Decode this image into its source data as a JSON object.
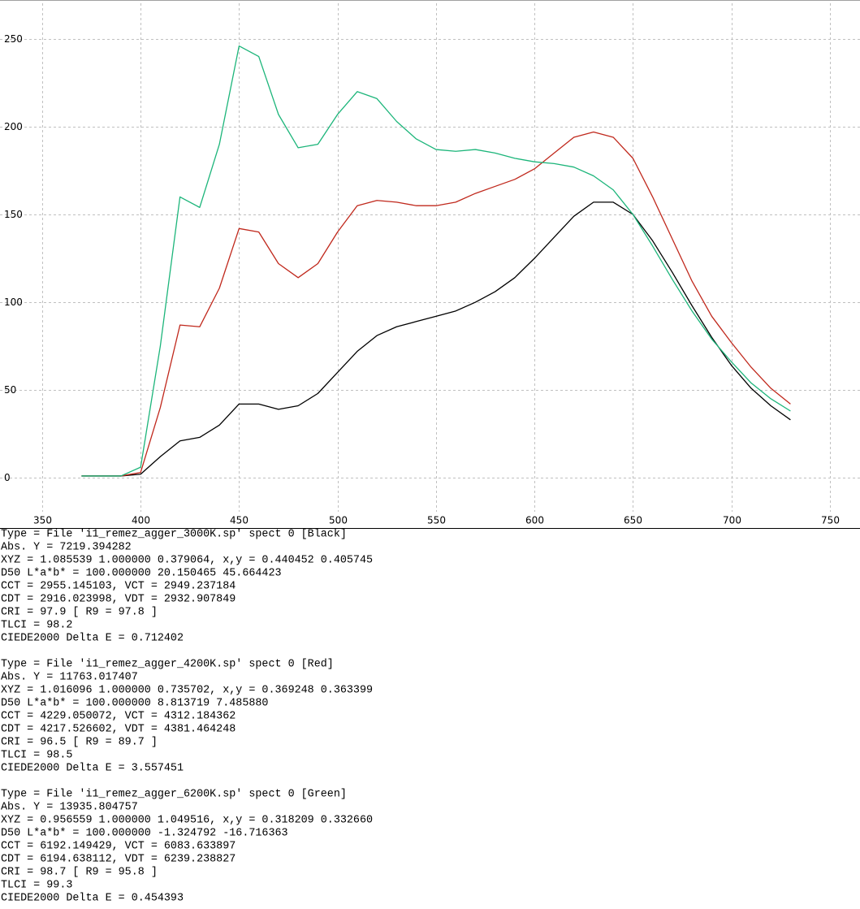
{
  "chart_data": {
    "type": "line",
    "x": [
      370,
      380,
      390,
      400,
      410,
      420,
      430,
      440,
      450,
      460,
      470,
      480,
      490,
      500,
      510,
      520,
      530,
      540,
      550,
      560,
      570,
      580,
      590,
      600,
      610,
      620,
      630,
      640,
      650,
      660,
      670,
      680,
      690,
      700,
      710,
      720,
      730
    ],
    "series": [
      {
        "color": "#000000",
        "values": [
          1,
          1,
          1,
          2,
          12,
          21,
          23,
          30,
          42,
          42,
          39,
          41,
          48,
          60,
          72,
          81,
          86,
          89,
          92,
          95,
          100,
          106,
          114,
          125,
          137,
          149,
          157,
          157,
          150,
          135,
          117,
          98,
          80,
          64,
          51,
          41,
          33
        ]
      },
      {
        "color": "#c0281c",
        "values": [
          1,
          1,
          1,
          3,
          40,
          87,
          86,
          108,
          142,
          140,
          122,
          114,
          122,
          140,
          155,
          158,
          157,
          155,
          155,
          157,
          162,
          166,
          170,
          176,
          185,
          194,
          197,
          194,
          182,
          160,
          136,
          112,
          92,
          77,
          63,
          51,
          42
        ]
      },
      {
        "color": "#1cb57a",
        "values": [
          1,
          1,
          1,
          6,
          75,
          160,
          154,
          190,
          246,
          240,
          207,
          188,
          190,
          207,
          220,
          216,
          203,
          193,
          187,
          186,
          187,
          185,
          182,
          180,
          179,
          177,
          172,
          164,
          150,
          132,
          113,
          95,
          79,
          66,
          54,
          45,
          38
        ]
      }
    ],
    "xlim": [
      328.6,
      765.3
    ],
    "ylim": [
      -19.4,
      272.2
    ],
    "xticks": [
      350,
      400,
      450,
      500,
      550,
      600,
      650,
      700,
      750
    ],
    "yticks": [
      0,
      50,
      100,
      150,
      200,
      250
    ],
    "grid": true
  },
  "report": {
    "blocks": [
      {
        "lines": [
          "Type = File 'i1_remez_agger_3000K.sp' spect 0 [Black]",
          "Abs. Y = 7219.394282",
          "XYZ = 1.085539 1.000000 0.379064, x,y = 0.440452 0.405745",
          "D50 L*a*b* = 100.000000 20.150465 45.664423",
          "CCT = 2955.145103, VCT = 2949.237184",
          "CDT = 2916.023998, VDT = 2932.907849",
          "CRI = 97.9 [ R9 = 97.8 ]",
          "TLCI = 98.2",
          "CIEDE2000 Delta E = 0.712402"
        ]
      },
      {
        "lines": [
          "Type = File 'i1_remez_agger_4200K.sp' spect 0 [Red]",
          "Abs. Y = 11763.017407",
          "XYZ = 1.016096 1.000000 0.735702, x,y = 0.369248 0.363399",
          "D50 L*a*b* = 100.000000 8.813719 7.485880",
          "CCT = 4229.050072, VCT = 4312.184362",
          "CDT = 4217.526602, VDT = 4381.464248",
          "CRI = 96.5 [ R9 = 89.7 ]",
          "TLCI = 98.5",
          "CIEDE2000 Delta E = 3.557451"
        ]
      },
      {
        "lines": [
          "Type = File 'i1_remez_agger_6200K.sp' spect 0 [Green]",
          "Abs. Y = 13935.804757",
          "XYZ = 0.956559 1.000000 1.049516, x,y = 0.318209 0.332660",
          "D50 L*a*b* = 100.000000 -1.324792 -16.716363",
          "CCT = 6192.149429, VCT = 6083.633897",
          "CDT = 6194.638112, VDT = 6239.238827",
          "CRI = 98.7 [ R9 = 95.8 ]",
          "TLCI = 99.3",
          "CIEDE2000 Delta E = 0.454393"
        ]
      }
    ]
  }
}
